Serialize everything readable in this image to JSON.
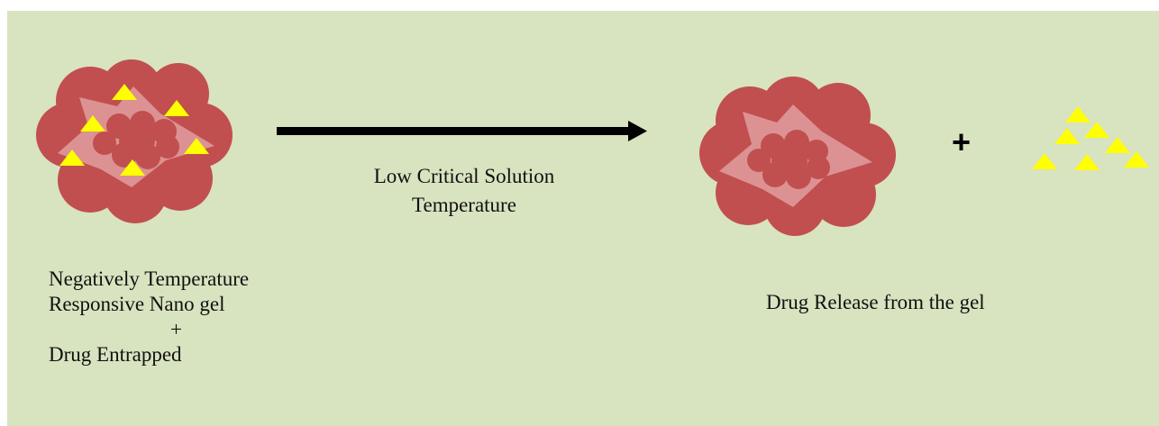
{
  "figure": {
    "background_color": "#d8e3c0",
    "gel_outer_color": "#c14f4f",
    "gel_star_color": "#dc9292",
    "drug_color": "#ffff00",
    "arrow_color": "#000000",
    "arrow_label_line1": "Low Critical Solution",
    "arrow_label_line2": "Temperature",
    "left_caption_line1": "Negatively Temperature",
    "left_caption_line2": "Responsive Nano gel",
    "left_caption_plus": "+",
    "left_caption_line3": "Drug Entrapped",
    "plus_sign": "+",
    "right_caption": "Drug Release from the gel"
  }
}
